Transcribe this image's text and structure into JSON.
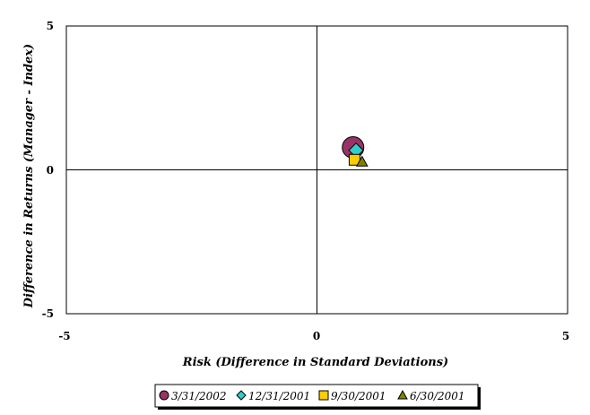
{
  "chart_data": {
    "type": "scatter",
    "title": "",
    "xlabel": "Risk (Difference in Standard Deviations)",
    "ylabel": "Difference in Returns (Manager - Index)",
    "xlim": [
      -5,
      5
    ],
    "ylim": [
      -5,
      5
    ],
    "x_ticks": [
      "-5",
      "0",
      "5"
    ],
    "y_ticks": [
      "5",
      "0",
      "-5"
    ],
    "grid": false,
    "reference_lines": "x = 0 and y = 0",
    "legend_position": "bottom",
    "series": [
      {
        "name": "3/31/2002",
        "marker": "circle",
        "color": "#993366",
        "x": [
          0.72
        ],
        "y": [
          0.78
        ]
      },
      {
        "name": "12/31/2001",
        "marker": "diamond",
        "color": "#33CCCC",
        "x": [
          0.78
        ],
        "y": [
          0.68
        ]
      },
      {
        "name": "9/30/2001",
        "marker": "square",
        "color": "#FFCC00",
        "x": [
          0.75
        ],
        "y": [
          0.35
        ]
      },
      {
        "name": "6/30/2001",
        "marker": "triangle",
        "color": "#808000",
        "x": [
          0.9
        ],
        "y": [
          0.28
        ]
      }
    ]
  }
}
